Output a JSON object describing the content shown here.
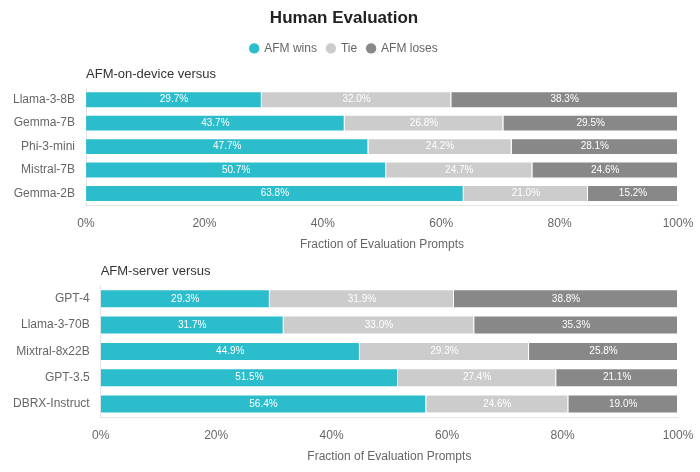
{
  "chart_data": [
    {
      "type": "bar",
      "orientation": "horizontal",
      "stacked": true,
      "title": "Human Evaluation",
      "subtitle": "AFM-on-device versus",
      "x_label": "Fraction of Evaluation Prompts",
      "categories": [
        "Gemma-2B",
        "Mistral-7B",
        "Phi-3-mini",
        "Gemma-7B",
        "Llama-3-8B"
      ],
      "series": [
        {
          "name": "AFM wins",
          "color": "#2BBDCC",
          "values": [
            63.8,
            50.7,
            47.7,
            43.7,
            29.7
          ],
          "value_labels": [
            "63.8%",
            "50.7%",
            "47.7%",
            "43.7%",
            "29.7%"
          ]
        },
        {
          "name": "Tie",
          "color": "#CCCCCC",
          "values": [
            21.0,
            24.7,
            24.2,
            26.8,
            32.0
          ],
          "value_labels": [
            "21.0%",
            "24.7%",
            "24.2%",
            "26.8%",
            "32.0%"
          ]
        },
        {
          "name": "AFM loses",
          "color": "#888888",
          "values": [
            15.2,
            24.6,
            28.1,
            29.5,
            38.3
          ],
          "value_labels": [
            "15.2%",
            "24.6%",
            "28.1%",
            "29.5%",
            "38.3%"
          ]
        }
      ],
      "xlim": [
        0,
        100
      ],
      "xticks": [
        {
          "value": 0,
          "label": "0%"
        },
        {
          "value": 20,
          "label": "20%"
        },
        {
          "value": 40,
          "label": "40%"
        },
        {
          "value": 60,
          "label": "60%"
        },
        {
          "value": 80,
          "label": "80%"
        },
        {
          "value": 100,
          "label": "100%"
        }
      ],
      "grid": false,
      "legend": "top",
      "data_labels": true
    },
    {
      "type": "bar",
      "orientation": "horizontal",
      "stacked": true,
      "subtitle": "AFM-server versus",
      "x_label": "Fraction of Evaluation Prompts",
      "categories": [
        "DBRX-Instruct",
        "GPT-3.5",
        "Mixtral-8x22B",
        "Llama-3-70B",
        "GPT-4"
      ],
      "series": [
        {
          "name": "AFM wins",
          "color": "#2BBDCC",
          "values": [
            56.4,
            51.5,
            44.9,
            31.7,
            29.3
          ],
          "value_labels": [
            "56.4%",
            "51.5%",
            "44.9%",
            "31.7%",
            "29.3%"
          ]
        },
        {
          "name": "Tie",
          "color": "#CCCCCC",
          "values": [
            24.6,
            27.4,
            29.3,
            33.0,
            31.9
          ],
          "value_labels": [
            "24.6%",
            "27.4%",
            "29.3%",
            "33.0%",
            "31.9%"
          ]
        },
        {
          "name": "AFM loses",
          "color": "#888888",
          "values": [
            19.0,
            21.1,
            25.8,
            35.3,
            38.8
          ],
          "value_labels": [
            "19.0%",
            "21.1%",
            "25.8%",
            "35.3%",
            "38.8%"
          ]
        }
      ],
      "xlim": [
        0,
        100
      ],
      "xticks": [
        {
          "value": 0,
          "label": "0%"
        },
        {
          "value": 20,
          "label": "20%"
        },
        {
          "value": 40,
          "label": "40%"
        },
        {
          "value": 60,
          "label": "60%"
        },
        {
          "value": 80,
          "label": "80%"
        },
        {
          "value": 100,
          "label": "100%"
        }
      ],
      "grid": false,
      "data_labels": true
    }
  ]
}
